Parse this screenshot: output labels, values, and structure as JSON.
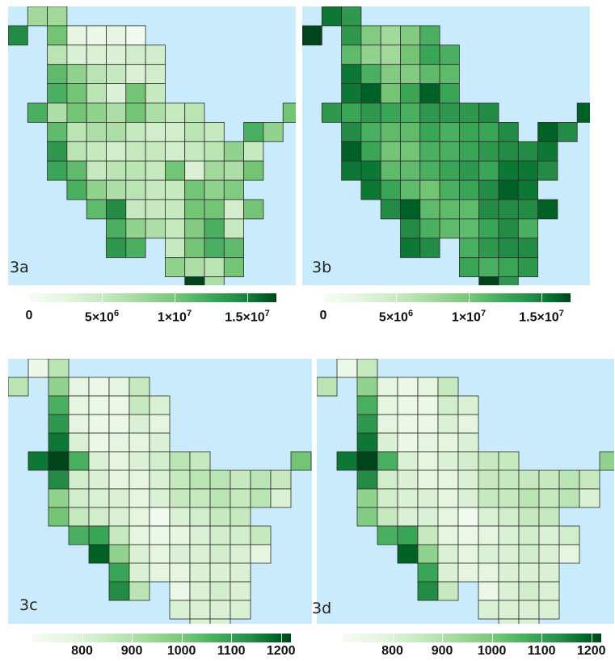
{
  "panels": [
    {
      "id": "3a",
      "label": "3a",
      "scale": "ab",
      "grid": [
        "011000000000000",
        "100000000000000",
        "010000000000000"
      ]
    },
    {
      "id": "3b",
      "label": "3b",
      "scale": "ab"
    },
    {
      "id": "3c",
      "label": "3c",
      "scale": "cd"
    },
    {
      "id": "3d",
      "label": "3d",
      "scale": "cd"
    }
  ],
  "colorbars": {
    "ab": {
      "min": 0,
      "max": 17000000,
      "ticks": [
        {
          "value": 0,
          "label": "0"
        },
        {
          "value": 5000000,
          "label": "5×10",
          "exp": "6"
        },
        {
          "value": 10000000,
          "label": "1×10",
          "exp": "7"
        },
        {
          "value": 15000000,
          "label": "1.5×10",
          "exp": "7"
        }
      ]
    },
    "cd": {
      "min": 700,
      "max": 1220,
      "ticks": [
        {
          "value": 800,
          "label": "800"
        },
        {
          "value": 900,
          "label": "900"
        },
        {
          "value": 1000,
          "label": "1000"
        },
        {
          "value": 1100,
          "label": "1100"
        },
        {
          "value": 1200,
          "label": "1200"
        }
      ]
    }
  },
  "colors": {
    "water": "#c9ebfb",
    "low": "#f7fcf5",
    "high": "#00441b",
    "cell_border": "#2b2b2b"
  },
  "maps": {
    "3a": [
      [
        null,
        0.45,
        0.45,
        null,
        null,
        null,
        null,
        null,
        null,
        null,
        null,
        null,
        null,
        null
      ],
      [
        0.85,
        null,
        0.6,
        0.15,
        0.1,
        0.15,
        0.05,
        null,
        null,
        null,
        null,
        null,
        null,
        null
      ],
      [
        null,
        null,
        0.35,
        0.2,
        0.2,
        0.2,
        0.25,
        0.25,
        null,
        null,
        null,
        null,
        null,
        null
      ],
      [
        null,
        null,
        0.65,
        0.5,
        0.35,
        0.3,
        0.2,
        0.25,
        null,
        null,
        null,
        null,
        null,
        null
      ],
      [
        null,
        null,
        0.7,
        0.6,
        0.35,
        0.2,
        0.6,
        0.3,
        null,
        null,
        null,
        null,
        null,
        null
      ],
      [
        null,
        0.7,
        0.4,
        0.6,
        0.5,
        0.4,
        0.6,
        0.4,
        0.3,
        0.35,
        null,
        null,
        null,
        null,
        0.6
      ],
      [
        null,
        null,
        0.65,
        0.35,
        0.4,
        0.4,
        0.3,
        0.25,
        0.25,
        0.35,
        0.3,
        null,
        0.7,
        0.5,
        null
      ],
      [
        null,
        null,
        0.8,
        0.35,
        0.3,
        0.25,
        0.3,
        0.3,
        0.25,
        0.3,
        0.35,
        0.5,
        0.3,
        null,
        null
      ],
      [
        null,
        null,
        0.75,
        0.65,
        0.3,
        0.35,
        0.35,
        0.3,
        0.6,
        0.2,
        0.45,
        0.4,
        0.6,
        null,
        null
      ],
      [
        null,
        null,
        null,
        0.7,
        0.5,
        0.4,
        0.35,
        0.3,
        0.3,
        0.6,
        0.5,
        0.55,
        null,
        null,
        null
      ],
      [
        null,
        null,
        null,
        null,
        0.65,
        0.85,
        0.3,
        0.3,
        0.3,
        0.6,
        0.6,
        0.25,
        0.6,
        null,
        null
      ],
      [
        null,
        null,
        null,
        null,
        null,
        0.7,
        0.5,
        0.4,
        0.3,
        0.55,
        0.7,
        0.3,
        null,
        null,
        null
      ],
      [
        null,
        null,
        null,
        null,
        null,
        0.8,
        0.7,
        null,
        0.3,
        0.6,
        0.7,
        0.65,
        null,
        null,
        null
      ],
      [
        null,
        null,
        null,
        null,
        null,
        null,
        null,
        null,
        0.5,
        0.4,
        0.35,
        0.6,
        null,
        null,
        null
      ],
      [
        null,
        null,
        null,
        null,
        null,
        null,
        null,
        null,
        null,
        1.0,
        0.4,
        null,
        null,
        null,
        null
      ]
    ],
    "3b": [
      [
        null,
        0.9,
        0.8,
        null,
        null,
        null,
        null,
        null,
        null,
        null,
        null,
        null,
        null,
        null
      ],
      [
        1.0,
        null,
        0.8,
        0.55,
        0.45,
        0.55,
        0.7,
        null,
        null,
        null,
        null,
        null,
        null,
        null
      ],
      [
        null,
        null,
        0.65,
        0.5,
        0.45,
        0.6,
        0.75,
        0.7,
        null,
        null,
        null,
        null,
        null,
        null
      ],
      [
        null,
        null,
        0.9,
        0.7,
        0.55,
        0.55,
        0.65,
        0.65,
        null,
        null,
        null,
        null,
        null,
        null
      ],
      [
        null,
        null,
        0.9,
        0.95,
        0.6,
        0.75,
        0.95,
        0.75,
        null,
        null,
        null,
        null,
        null,
        null
      ],
      [
        null,
        0.8,
        0.75,
        0.8,
        0.75,
        0.7,
        0.8,
        0.8,
        0.8,
        0.85,
        null,
        null,
        null,
        null,
        0.95
      ],
      [
        null,
        null,
        0.85,
        0.7,
        0.65,
        0.65,
        0.75,
        0.7,
        0.75,
        0.75,
        0.85,
        null,
        0.95,
        0.85,
        null
      ],
      [
        null,
        null,
        0.95,
        0.75,
        0.6,
        0.6,
        0.7,
        0.7,
        0.75,
        0.8,
        0.85,
        0.85,
        0.9,
        null,
        null
      ],
      [
        null,
        null,
        0.9,
        0.9,
        0.65,
        0.65,
        0.7,
        0.75,
        0.8,
        0.75,
        0.9,
        0.9,
        0.85,
        null,
        null
      ],
      [
        null,
        null,
        null,
        0.9,
        0.75,
        0.65,
        0.6,
        0.7,
        0.75,
        0.85,
        0.95,
        0.9,
        null,
        null,
        null
      ],
      [
        null,
        null,
        null,
        null,
        0.85,
        0.95,
        0.65,
        0.65,
        0.65,
        0.85,
        0.85,
        0.85,
        0.95,
        null,
        null
      ],
      [
        null,
        null,
        null,
        null,
        null,
        0.85,
        0.7,
        0.65,
        0.65,
        0.75,
        0.85,
        0.7,
        null,
        null,
        null
      ],
      [
        null,
        null,
        null,
        null,
        null,
        0.9,
        0.85,
        null,
        0.7,
        0.8,
        0.85,
        0.85,
        null,
        null,
        null
      ],
      [
        null,
        null,
        null,
        null,
        null,
        null,
        null,
        null,
        0.75,
        0.7,
        0.75,
        0.8,
        null,
        null,
        null
      ],
      [
        null,
        null,
        null,
        null,
        null,
        null,
        null,
        null,
        null,
        1.0,
        0.8,
        null,
        null,
        null,
        null
      ]
    ],
    "3c": [
      [
        null,
        0.1,
        0.35,
        null,
        null,
        null,
        null,
        null,
        null,
        null,
        null,
        null,
        null,
        null,
        null
      ],
      [
        0.35,
        null,
        0.5,
        0.15,
        0.1,
        0.15,
        0.3,
        null,
        null,
        null,
        null,
        null,
        null,
        null,
        null
      ],
      [
        null,
        null,
        0.7,
        0.15,
        0.1,
        0.1,
        0.3,
        0.2,
        null,
        null,
        null,
        null,
        null,
        null,
        null
      ],
      [
        null,
        null,
        0.8,
        0.15,
        0.1,
        0.1,
        0.2,
        0.15,
        null,
        null,
        null,
        null,
        null,
        null,
        null
      ],
      [
        null,
        null,
        0.9,
        0.2,
        0.1,
        0.15,
        0.15,
        0.2,
        null,
        null,
        null,
        null,
        null,
        null,
        null
      ],
      [
        null,
        0.9,
        1.0,
        0.7,
        0.2,
        0.15,
        0.2,
        0.25,
        0.35,
        0.3,
        null,
        null,
        null,
        null,
        0.6
      ],
      [
        null,
        null,
        0.85,
        0.25,
        0.2,
        0.15,
        0.15,
        0.2,
        0.3,
        0.35,
        0.35,
        0.3,
        0.35,
        0.3,
        null
      ],
      [
        null,
        null,
        0.5,
        0.25,
        0.2,
        0.2,
        0.15,
        0.2,
        0.3,
        0.3,
        0.35,
        0.3,
        0.35,
        0.2,
        null
      ],
      [
        null,
        null,
        0.6,
        0.3,
        0.25,
        0.2,
        0.15,
        0.05,
        0.2,
        0.25,
        0.3,
        0.3,
        null,
        null,
        null
      ],
      [
        null,
        null,
        null,
        0.7,
        0.75,
        0.3,
        0.15,
        0.1,
        0.15,
        0.2,
        0.25,
        0.25,
        0.3,
        null,
        null
      ],
      [
        null,
        null,
        null,
        null,
        0.95,
        0.5,
        0.2,
        0.15,
        0.2,
        0.2,
        0.25,
        0.2,
        0.15,
        null,
        null
      ],
      [
        null,
        null,
        null,
        null,
        null,
        0.75,
        0.2,
        0.15,
        0.15,
        0.2,
        0.2,
        0.2,
        null,
        null,
        null
      ],
      [
        null,
        null,
        null,
        null,
        null,
        0.85,
        0.35,
        null,
        0.1,
        0.2,
        0.25,
        0.2,
        null,
        null,
        null
      ],
      [
        null,
        null,
        null,
        null,
        null,
        null,
        null,
        null,
        0.2,
        0.2,
        0.2,
        0.2,
        null,
        null,
        null
      ],
      [
        null,
        null,
        null,
        null,
        null,
        null,
        null,
        null,
        null,
        0.2,
        0.2,
        null,
        null,
        null,
        null
      ]
    ],
    "3d": [
      [
        null,
        0.1,
        0.3,
        null,
        null,
        null,
        null,
        null,
        null,
        null,
        null,
        null,
        null,
        null,
        null
      ],
      [
        0.35,
        null,
        0.5,
        0.15,
        0.1,
        0.15,
        0.3,
        null,
        null,
        null,
        null,
        null,
        null,
        null,
        null
      ],
      [
        null,
        null,
        0.7,
        0.15,
        0.1,
        0.1,
        0.25,
        0.2,
        null,
        null,
        null,
        null,
        null,
        null,
        null
      ],
      [
        null,
        null,
        0.8,
        0.15,
        0.1,
        0.1,
        0.2,
        0.15,
        null,
        null,
        null,
        null,
        null,
        null,
        null
      ],
      [
        null,
        null,
        0.9,
        0.2,
        0.1,
        0.15,
        0.15,
        0.2,
        null,
        null,
        null,
        null,
        null,
        null,
        null
      ],
      [
        null,
        0.9,
        1.0,
        0.7,
        0.2,
        0.15,
        0.2,
        0.25,
        0.3,
        0.3,
        null,
        null,
        null,
        null,
        0.5
      ],
      [
        null,
        null,
        0.85,
        0.25,
        0.2,
        0.15,
        0.15,
        0.2,
        0.3,
        0.3,
        0.3,
        0.3,
        0.35,
        0.3,
        null
      ],
      [
        null,
        null,
        0.5,
        0.25,
        0.2,
        0.2,
        0.15,
        0.2,
        0.3,
        0.3,
        0.35,
        0.3,
        0.35,
        0.2,
        null
      ],
      [
        null,
        null,
        0.55,
        0.3,
        0.2,
        0.2,
        0.15,
        0.05,
        0.2,
        0.25,
        0.3,
        0.3,
        null,
        null,
        null
      ],
      [
        null,
        null,
        null,
        0.7,
        0.75,
        0.3,
        0.15,
        0.1,
        0.15,
        0.2,
        0.25,
        0.2,
        0.25,
        null,
        null
      ],
      [
        null,
        null,
        null,
        null,
        0.95,
        0.5,
        0.2,
        0.15,
        0.2,
        0.2,
        0.25,
        0.2,
        0.15,
        null,
        null
      ],
      [
        null,
        null,
        null,
        null,
        null,
        0.75,
        0.2,
        0.15,
        0.15,
        0.2,
        0.2,
        0.2,
        null,
        null,
        null
      ],
      [
        null,
        null,
        null,
        null,
        null,
        0.85,
        0.3,
        null,
        0.1,
        0.2,
        0.25,
        0.2,
        null,
        null,
        null
      ],
      [
        null,
        null,
        null,
        null,
        null,
        null,
        null,
        null,
        0.2,
        0.2,
        0.2,
        0.2,
        null,
        null,
        null
      ],
      [
        null,
        null,
        null,
        null,
        null,
        null,
        null,
        null,
        null,
        0.2,
        0.2,
        null,
        null,
        null,
        null
      ]
    ]
  }
}
